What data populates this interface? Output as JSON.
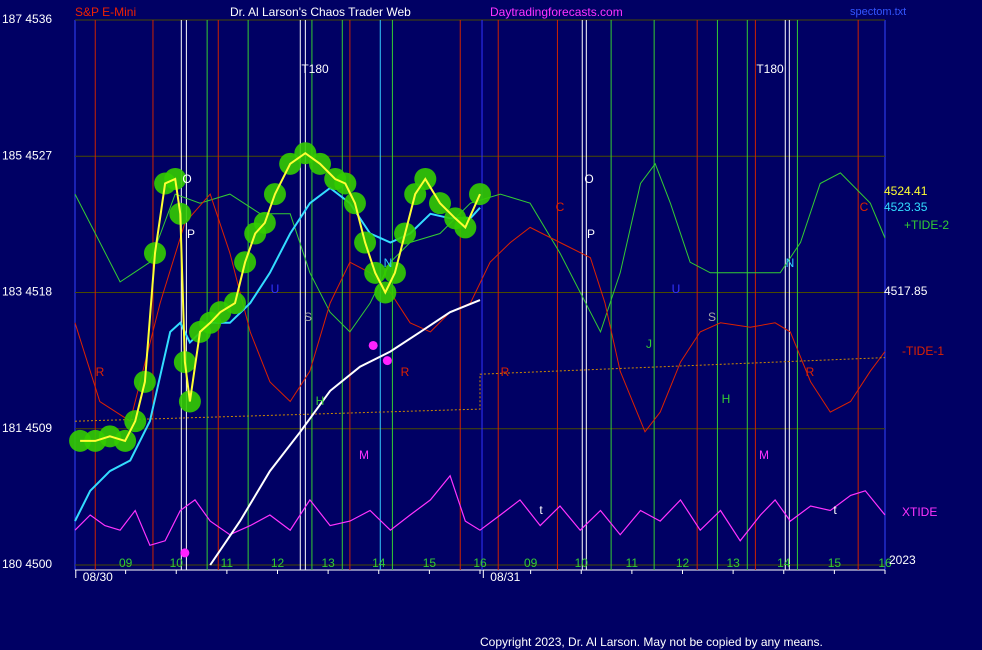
{
  "chart_data": {
    "type": "line",
    "instrument": "S&P E-Mini",
    "title": "Dr. Al Larson's Chaos Trader Web",
    "website": "Daytradingforecasts.com",
    "file": "spectom.txt",
    "copyright": "Copyright 2023, Dr. Al Larson. May not be copied by any means.",
    "background": "#000064",
    "grid": true,
    "ylim": [
      4500,
      4536
    ],
    "yticks": [
      {
        "value": 4500,
        "label": "180 4500"
      },
      {
        "value": 4509,
        "label": "181 4509"
      },
      {
        "value": 4518,
        "label": "183 4518"
      },
      {
        "value": 4527,
        "label": "185 4527"
      },
      {
        "value": 4536,
        "label": "187 4536"
      }
    ],
    "xlim": [
      0,
      16
    ],
    "xticks": [
      {
        "value": 1,
        "label": "09"
      },
      {
        "value": 2,
        "label": "10"
      },
      {
        "value": 3,
        "label": "11"
      },
      {
        "value": 4,
        "label": "12"
      },
      {
        "value": 5,
        "label": "13"
      },
      {
        "value": 6,
        "label": "14"
      },
      {
        "value": 7,
        "label": "15"
      },
      {
        "value": 8,
        "label": "16"
      },
      {
        "value": 9,
        "label": "09"
      },
      {
        "value": 10,
        "label": "10"
      },
      {
        "value": 11,
        "label": "11"
      },
      {
        "value": 12,
        "label": "12"
      },
      {
        "value": 13,
        "label": "13"
      },
      {
        "value": 14,
        "label": "14"
      },
      {
        "value": 15,
        "label": "15"
      },
      {
        "value": 16,
        "label": "16"
      }
    ],
    "dates": [
      {
        "value": 0.45,
        "label": "08/30"
      },
      {
        "value": 8.5,
        "label": "08/31"
      }
    ],
    "series": [
      {
        "color": "#33cc33",
        "width": 1,
        "x": [
          0,
          0.4,
          0.89,
          1.48,
          1.98,
          2.47,
          3.06,
          3.66,
          4.25,
          4.64,
          5.04,
          5.43,
          5.83,
          6.23,
          6.62,
          7.21,
          7.81,
          8.4,
          8.99,
          9.58,
          10.38,
          10.77,
          11.17,
          11.46,
          11.76,
          12.15,
          12.55,
          13.34,
          13.93,
          14.33,
          14.72,
          15.12,
          15.71,
          16.0
        ],
        "values": [
          4524.5,
          4521.9,
          4518.7,
          4520.0,
          4524.5,
          4523.9,
          4524.5,
          4523.2,
          4523.2,
          4519.3,
          4516.7,
          4515.4,
          4517.3,
          4520.0,
          4521.3,
          4521.9,
          4523.9,
          4524.5,
          4523.9,
          4520.6,
          4515.4,
          4519.3,
          4525.2,
          4526.5,
          4523.9,
          4520.0,
          4519.3,
          4519.3,
          4519.3,
          4521.3,
          4525.2,
          4525.9,
          4523.9,
          4521.6
        ]
      },
      {
        "color": "#dd2200",
        "width": 1,
        "x": [
          0,
          0.49,
          1.09,
          1.68,
          2.17,
          2.67,
          3.06,
          3.46,
          3.85,
          4.25,
          4.64,
          5.04,
          5.43,
          5.83,
          6.23,
          6.62,
          7.02,
          7.41,
          7.81,
          8.2,
          8.6,
          8.99,
          9.58,
          10.18,
          10.47,
          10.77,
          11.26,
          11.56,
          11.96,
          12.35,
          12.75,
          13.34,
          13.83,
          14.13,
          14.53,
          14.92,
          15.32,
          15.71,
          16.0
        ],
        "values": [
          4516.0,
          4510.8,
          4509.5,
          4517.3,
          4522.6,
          4524.5,
          4520.6,
          4515.4,
          4512.1,
          4510.8,
          4512.8,
          4517.3,
          4520.0,
          4519.3,
          4518.0,
          4516.0,
          4515.4,
          4516.7,
          4517.3,
          4520.0,
          4521.3,
          4522.3,
          4521.3,
          4520.3,
          4517.3,
          4512.8,
          4508.8,
          4510.1,
          4513.4,
          4515.4,
          4516.0,
          4515.7,
          4516.0,
          4515.4,
          4512.1,
          4510.1,
          4510.8,
          4512.8,
          4514.1
        ]
      },
      {
        "color": "#cc8800",
        "width": 1,
        "dashed": true,
        "x": [
          0,
          8.0,
          8.0,
          16.0
        ],
        "values": [
          4509.5,
          4510.3,
          4512.6,
          4513.7
        ]
      },
      {
        "color": "#ff33ff",
        "width": 1.2,
        "x": [
          0,
          0.3,
          0.59,
          0.89,
          1.19,
          1.48,
          1.78,
          2.08,
          2.37,
          2.67,
          3.06,
          3.46,
          3.85,
          4.25,
          4.64,
          5.04,
          5.43,
          5.83,
          6.23,
          6.62,
          7.02,
          7.41,
          7.71,
          8.0,
          8.4,
          8.79,
          9.19,
          9.58,
          9.98,
          10.38,
          10.77,
          11.17,
          11.56,
          11.96,
          12.35,
          12.75,
          13.14,
          13.54,
          13.83,
          14.13,
          14.53,
          14.92,
          15.32,
          15.61,
          16.0
        ],
        "values": [
          4502.3,
          4503.3,
          4502.6,
          4502.3,
          4503.6,
          4501.3,
          4501.6,
          4503.6,
          4504.3,
          4502.9,
          4502.0,
          4502.6,
          4503.3,
          4502.3,
          4504.3,
          4502.6,
          4502.9,
          4503.6,
          4502.3,
          4503.3,
          4504.3,
          4505.9,
          4502.9,
          4502.3,
          4503.3,
          4504.3,
          4502.6,
          4503.9,
          4502.3,
          4503.6,
          4502.0,
          4503.6,
          4502.9,
          4504.3,
          4502.3,
          4503.6,
          4501.6,
          4503.3,
          4504.3,
          4502.9,
          4503.9,
          4503.6,
          4504.6,
          4504.9,
          4503.3
        ]
      },
      {
        "color": "#ffffff",
        "width": 2,
        "x": [
          2.67,
          3.26,
          3.85,
          4.45,
          5.04,
          5.63,
          6.23,
          6.82,
          7.41,
          8.0
        ],
        "values": [
          4500.0,
          4502.9,
          4506.2,
          4508.8,
          4511.5,
          4513.1,
          4514.1,
          4515.4,
          4516.7,
          4517.5
        ]
      },
      {
        "color": "#33ddff",
        "width": 2,
        "x": [
          0,
          0.3,
          0.69,
          1.09,
          1.48,
          1.88,
          2.08,
          2.27,
          2.67,
          3.06,
          3.46,
          3.85,
          4.25,
          4.64,
          5.04,
          5.43,
          5.83,
          6.23,
          6.62,
          7.02,
          7.41,
          7.81,
          8.0
        ],
        "values": [
          4502.9,
          4504.9,
          4506.2,
          4506.9,
          4509.5,
          4515.4,
          4516.0,
          4514.7,
          4516.0,
          4516.0,
          4517.3,
          4519.3,
          4521.9,
          4523.9,
          4524.9,
          4523.9,
          4521.9,
          4521.3,
          4521.9,
          4523.2,
          4522.9,
          4522.9,
          4523.6
        ]
      },
      {
        "color": "#ffff33",
        "width": 2,
        "blobs": "#33cc00",
        "x": [
          0.1,
          0.4,
          0.69,
          0.99,
          1.19,
          1.38,
          1.58,
          1.78,
          1.98,
          2.08,
          2.17,
          2.27,
          2.47,
          2.67,
          2.87,
          3.16,
          3.36,
          3.56,
          3.75,
          3.95,
          4.25,
          4.55,
          4.84,
          5.14,
          5.34,
          5.53,
          5.73,
          5.93,
          6.13,
          6.32,
          6.52,
          6.72,
          6.92,
          7.21,
          7.51,
          7.71,
          8.0
        ],
        "values": [
          4508.2,
          4508.2,
          4508.5,
          4508.2,
          4509.5,
          4512.1,
          4520.6,
          4525.2,
          4525.5,
          4523.2,
          4513.4,
          4510.8,
          4515.4,
          4516.0,
          4516.7,
          4517.3,
          4520.0,
          4521.9,
          4522.6,
          4524.5,
          4526.5,
          4527.2,
          4526.5,
          4525.5,
          4525.2,
          4523.9,
          4521.3,
          4519.3,
          4518.0,
          4519.3,
          4521.9,
          4524.5,
          4525.5,
          4523.9,
          4522.9,
          4522.3,
          4524.5
        ]
      }
    ],
    "points": {
      "color": "#ff22ff",
      "x": [
        2.17,
        5.89,
        6.17
      ],
      "values": [
        4500.8,
        4514.5,
        4513.5
      ]
    },
    "vlines": {
      "x": [
        0.4,
        1.54,
        2.1,
        2.2,
        2.61,
        2.83,
        3.42,
        4.45,
        4.55,
        4.68,
        5.28,
        5.43,
        6.03,
        6.27,
        7.61,
        8.04,
        8.36,
        9.53,
        10.02,
        10.1,
        10.59,
        11.44,
        12.29,
        12.69,
        13.28,
        13.44,
        14.03,
        14.11,
        14.27,
        15.47
      ],
      "colors": [
        "#cc2200",
        "#cc2200",
        "#ffffff",
        "#ffffff",
        "#33cc33",
        "#cc2200",
        "#33cc33",
        "#ffffff",
        "#ffffff",
        "#33cc33",
        "#33cc33",
        "#cc2200",
        "#33ccff",
        "#33cc33",
        "#cc2200",
        "#3333ff",
        "#cc2200",
        "#cc2200",
        "#ffffff",
        "#ffffff",
        "#33cc33",
        "#33cc33",
        "#cc2200",
        "#33cc33",
        "#33cc33",
        "#cc2200",
        "#ffffff",
        "#ffffff",
        "#33cc33",
        "#cc2200"
      ]
    },
    "annotations": [
      {
        "text": "T180",
        "color": "#ffffff"
      },
      {
        "text": "T180",
        "color": "#ffffff"
      },
      {
        "text": "O",
        "color": "#ffffff"
      },
      {
        "text": "P",
        "color": "#ffffff"
      },
      {
        "text": "O",
        "color": "#ffffff"
      },
      {
        "text": "P",
        "color": "#ffffff"
      },
      {
        "text": "C",
        "color": "#dd2200"
      },
      {
        "text": "C",
        "color": "#dd2200"
      },
      {
        "text": "R",
        "color": "#dd2200"
      },
      {
        "text": "R",
        "color": "#dd2200"
      },
      {
        "text": "R",
        "color": "#dd2200"
      },
      {
        "text": "R",
        "color": "#dd2200"
      },
      {
        "text": "S",
        "color": "#aaaaaa"
      },
      {
        "text": "S",
        "color": "#aaaaaa"
      },
      {
        "text": "U",
        "color": "#3333ff"
      },
      {
        "text": "U",
        "color": "#3333ff"
      },
      {
        "text": "H",
        "color": "#33cc33"
      },
      {
        "text": "H",
        "color": "#33cc33"
      },
      {
        "text": "M",
        "color": "#ff33ff"
      },
      {
        "text": "M",
        "color": "#ff33ff"
      },
      {
        "text": "N",
        "color": "#33ccff"
      },
      {
        "text": "N",
        "color": "#33ccff"
      },
      {
        "text": "J",
        "color": "#33cc33"
      },
      {
        "text": "t",
        "color": "#ffffff"
      },
      {
        "text": "t",
        "color": "#ffffff"
      }
    ],
    "side_labels": [
      {
        "text": "4524.41",
        "color": "#ffff33"
      },
      {
        "text": "4523.35",
        "color": "#33ddff"
      },
      {
        "text": "+TIDE-2",
        "color": "#33cc33"
      },
      {
        "text": "4517.85",
        "color": "#ffffff"
      },
      {
        "text": "-TIDE-1",
        "color": "#dd2200"
      },
      {
        "text": "XTIDE",
        "color": "#ff33ff"
      },
      {
        "text": "2023",
        "color": "#ffffff"
      }
    ]
  }
}
